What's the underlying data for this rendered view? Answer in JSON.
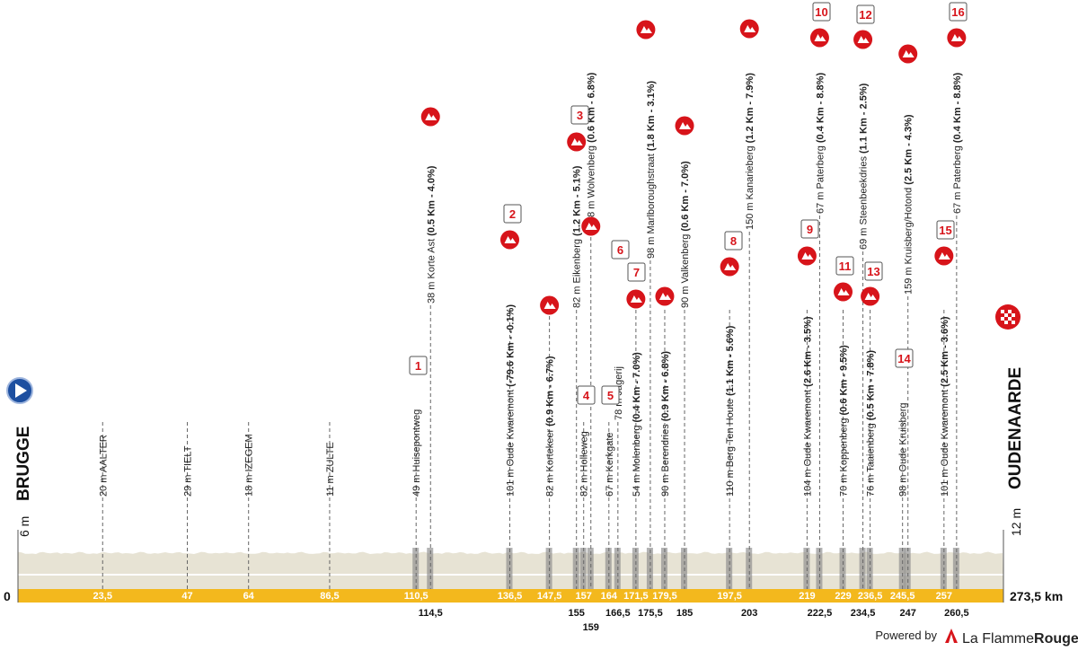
{
  "chart_data": {
    "type": "area",
    "title": "",
    "xlabel": "",
    "ylabel": "",
    "x_unit": "km",
    "xlim": [
      0,
      273.5
    ],
    "start": {
      "name": "BRUGGE",
      "altitude": "6 m",
      "km": "0"
    },
    "finish": {
      "name": "OUDENAARDE",
      "altitude": "12 m",
      "km": "273,5 km"
    },
    "waypoints": [
      {
        "km": 23.5,
        "km_label": "23,5",
        "label": "20 m AALTER",
        "parts": [
          {
            "t": "20 m AALTER",
            "b": false
          }
        ]
      },
      {
        "km": 47,
        "km_label": "47",
        "label": "29 m TIELT",
        "parts": [
          {
            "t": "29 m TIELT",
            "b": false
          }
        ]
      },
      {
        "km": 64,
        "km_label": "64",
        "label": "18 m IZEGEM",
        "parts": [
          {
            "t": "18 m IZEGEM",
            "b": false
          }
        ]
      },
      {
        "km": 86.5,
        "km_label": "86,5",
        "label": "11 m ZULTE",
        "parts": [
          {
            "t": "11 m ZULTE",
            "b": false
          }
        ]
      },
      {
        "km": 110.5,
        "km_label": "110,5",
        "label": "49 m Huisepontweg",
        "parts": [
          {
            "t": "49 m Huisepontweg",
            "b": false
          }
        ],
        "sector": "1"
      },
      {
        "km": 114.5,
        "km_label": "114,5",
        "label": "38 m Korte Ast (0.5 Km - 4.0%)",
        "parts": [
          {
            "t": "38 m Korte Ast ",
            "b": false
          },
          {
            "t": "(0.5 Km - 4.0%)",
            "b": true
          }
        ],
        "climb": true
      },
      {
        "km": 136.5,
        "km_label": "136,5",
        "label": "101 m Oude Kwaremont (-79.6 Km - -0.1%)",
        "parts": [
          {
            "t": "101 m Oude Kwaremont ",
            "b": false
          },
          {
            "t": "(-79.6 Km - -0.1%)",
            "b": true
          }
        ],
        "sector": "2",
        "climb": true
      },
      {
        "km": 147.5,
        "km_label": "147,5",
        "label": "82 m Kortekeer (0.9 Km - 6.7%)",
        "parts": [
          {
            "t": "82 m Kortekeer ",
            "b": false
          },
          {
            "t": "(0.9 Km - 6.7%)",
            "b": true
          }
        ],
        "climb": true
      },
      {
        "km": 155,
        "km_label": "155",
        "label": "82 m Eikenberg (1.2 Km - 5.1%)",
        "parts": [
          {
            "t": "82 m Eikenberg ",
            "b": false
          },
          {
            "t": "(1.2 Km - 5.1%)",
            "b": true
          }
        ],
        "sector": "3",
        "climb": true
      },
      {
        "km": 157,
        "km_label": "157",
        "label": "82 m Holleweg",
        "parts": [
          {
            "t": "82 m Holleweg",
            "b": false
          }
        ],
        "sector": "4"
      },
      {
        "km": 159,
        "km_label": "159",
        "label": "68 m Wolvenberg (0.6 Km - 6.8%)",
        "parts": [
          {
            "t": "68 m Wolvenberg ",
            "b": false
          },
          {
            "t": "(0.6 Km - 6.8%)",
            "b": true
          }
        ],
        "climb": true
      },
      {
        "km": 164,
        "km_label": "164",
        "label": "67 m Kerkgate",
        "parts": [
          {
            "t": "67 m Kerkgate",
            "b": false
          }
        ],
        "sector": "5"
      },
      {
        "km": 166.5,
        "km_label": "166,5",
        "label": "78 m Jagerij",
        "parts": [
          {
            "t": "78 m Jagerij",
            "b": false
          }
        ],
        "sector": "6"
      },
      {
        "km": 171.5,
        "km_label": "171,5",
        "label": "54 m Molenberg (0.4 Km - 7.0%)",
        "parts": [
          {
            "t": "54 m Molenberg ",
            "b": false
          },
          {
            "t": "(0.4 Km - 7.0%)",
            "b": true
          }
        ],
        "sector": "7",
        "climb": true
      },
      {
        "km": 175.5,
        "km_label": "175,5",
        "label": "98 m Marlboroughstraat (1.8 Km - 3.1%)",
        "parts": [
          {
            "t": "98 m Marlboroughstraat ",
            "b": false
          },
          {
            "t": "(1.8 Km - 3.1%)",
            "b": true
          }
        ],
        "climb": true
      },
      {
        "km": 179.5,
        "km_label": "179,5",
        "label": "90 m Berendries (0.9 Km - 6.8%)",
        "parts": [
          {
            "t": "90 m Berendries ",
            "b": false
          },
          {
            "t": "(0.9 Km - 6.8%)",
            "b": true
          }
        ],
        "climb": true
      },
      {
        "km": 185,
        "km_label": "185",
        "label": "90 m Valkenberg (0.6 Km - 7.0%)",
        "parts": [
          {
            "t": "90 m Valkenberg ",
            "b": false
          },
          {
            "t": "(0.6 Km - 7.0%)",
            "b": true
          }
        ],
        "climb": true
      },
      {
        "km": 197.5,
        "km_label": "197,5",
        "label": "110 m Berg Ten Houte (1.1 Km - 5.6%)",
        "parts": [
          {
            "t": "110 m Berg Ten Houte ",
            "b": false
          },
          {
            "t": "(1.1 Km - 5.6%)",
            "b": true
          }
        ],
        "sector": "8",
        "climb": true
      },
      {
        "km": 203,
        "km_label": "203",
        "label": "150 m Kanarieberg (1.2 Km - 7.9%)",
        "parts": [
          {
            "t": "150 m Kanarieberg ",
            "b": false
          },
          {
            "t": "(1.2 Km - 7.9%)",
            "b": true
          }
        ],
        "climb": true
      },
      {
        "km": 219,
        "km_label": "219",
        "label": "104 m Oude Kwaremont (2.6 Km - 3.5%)",
        "parts": [
          {
            "t": "104 m Oude Kwaremont ",
            "b": false
          },
          {
            "t": "(2.6 Km - 3.5%)",
            "b": true
          }
        ],
        "sector": "9",
        "climb": true
      },
      {
        "km": 222.5,
        "km_label": "222,5",
        "label": "67 m Paterberg (0.4 Km - 8.8%)",
        "parts": [
          {
            "t": "67 m Paterberg ",
            "b": false
          },
          {
            "t": "(0.4 Km - 8.8%)",
            "b": true
          }
        ],
        "sector": "10",
        "climb": true
      },
      {
        "km": 229,
        "km_label": "229",
        "label": "70 m Koppenberg (0.6 Km - 9.5%)",
        "parts": [
          {
            "t": "70 m Koppenberg ",
            "b": false
          },
          {
            "t": "(0.6 Km - 9.5%)",
            "b": true
          }
        ],
        "sector": "11",
        "climb": true
      },
      {
        "km": 234.5,
        "km_label": "234,5",
        "label": "69 m Steenbeekdries (1.1 Km - 2.5%)",
        "parts": [
          {
            "t": "69 m Steenbeekdries ",
            "b": false
          },
          {
            "t": "(1.1 Km - 2.5%)",
            "b": true
          }
        ],
        "sector": "12",
        "climb": true
      },
      {
        "km": 236.5,
        "km_label": "236,5",
        "label": "76 m Taaienberg (0.5 Km - 7.8%)",
        "parts": [
          {
            "t": "76 m Taaienberg ",
            "b": false
          },
          {
            "t": "(0.5 Km - 7.8%)",
            "b": true
          }
        ],
        "sector": "13",
        "climb": true
      },
      {
        "km": 245.5,
        "km_label": "245,5",
        "label": "98 m Oude Kruisberg",
        "parts": [
          {
            "t": "98 m Oude Kruisberg",
            "b": false
          }
        ],
        "sector": "14"
      },
      {
        "km": 247,
        "km_label": "247",
        "label": "159 m Kruisberg/Hotond (2.5 Km - 4.3%)",
        "parts": [
          {
            "t": "159 m Kruisberg/Hotond ",
            "b": false
          },
          {
            "t": "(2.5 Km - 4.3%)",
            "b": true
          }
        ],
        "climb": true
      },
      {
        "km": 257,
        "km_label": "257",
        "label": "101 m Oude Kwaremont (2.5 Km - 3.6%)",
        "parts": [
          {
            "t": "101 m Oude Kwaremont ",
            "b": false
          },
          {
            "t": "(2.5 Km - 3.6%)",
            "b": true
          }
        ],
        "sector": "15",
        "climb": true
      },
      {
        "km": 260.5,
        "km_label": "260,5",
        "label": "67 m Paterberg (0.4 Km - 8.8%)",
        "parts": [
          {
            "t": "67 m Paterberg ",
            "b": false
          },
          {
            "t": "(0.4 Km - 8.8%)",
            "b": true
          }
        ],
        "sector": "16",
        "climb": true
      }
    ]
  },
  "footer": {
    "powered_by": "Powered by",
    "brand_a": "La Flamme",
    "brand_b": "Rouge"
  },
  "colors": {
    "road": "#f3b81d",
    "profile": "#e7e3d4",
    "accent": "#d7141a",
    "start_marker": "#1d4fa0"
  }
}
